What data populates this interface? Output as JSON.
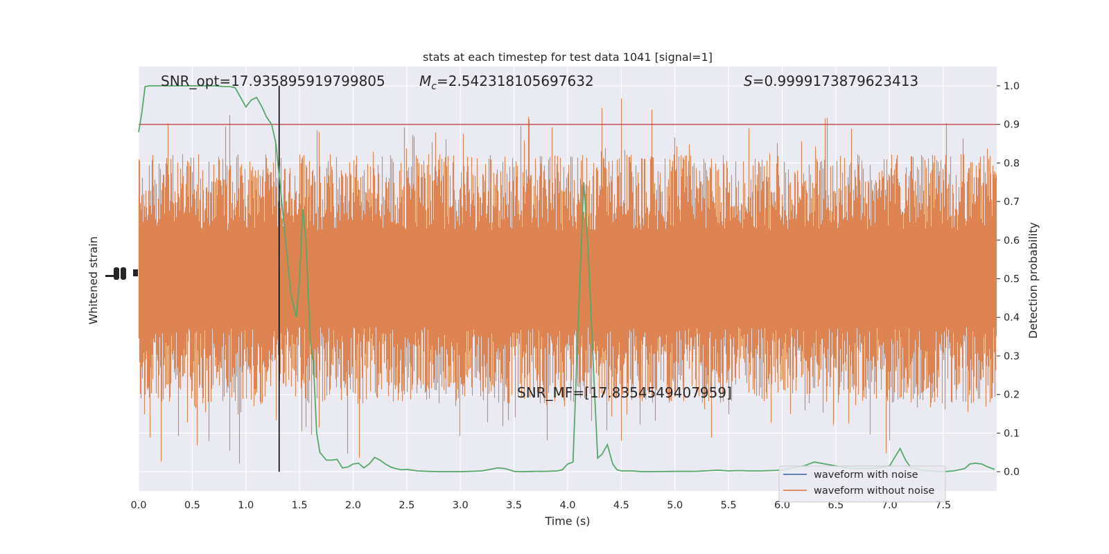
{
  "chart_data": {
    "type": "line",
    "title": "stats at each timestep for test data 1041 [signal=1]",
    "xlabel": "Time (s)",
    "ylabel_left": "Whitened strain",
    "ylabel_right": "Detection probability",
    "xlim": [
      0.0,
      8.0
    ],
    "ylim_right": [
      -0.05,
      1.05
    ],
    "x_ticks": [
      "0.0",
      "0.5",
      "1.0",
      "1.5",
      "2.0",
      "2.5",
      "3.0",
      "3.5",
      "4.0",
      "4.5",
      "5.0",
      "5.5",
      "6.0",
      "6.5",
      "7.0",
      "7.5"
    ],
    "right_ticks": [
      "0.0",
      "0.1",
      "0.2",
      "0.3",
      "0.4",
      "0.5",
      "0.6",
      "0.7",
      "0.8",
      "0.9",
      "1.0"
    ],
    "grid": true,
    "legend_position": "lower-right",
    "annotations": {
      "snr_opt": "SNR_opt=17.935895919799805",
      "mc_symbol": "M",
      "mc_sub": "c",
      "mc_value": "=2.542318105697632",
      "s_symbol": "S",
      "s_value": "=0.9999173879623413",
      "snr_mf": "SNR_MF=[17.8354549407959]"
    },
    "threshold": 0.9,
    "detection_time": 1.31,
    "series": [
      {
        "name": "waveform with noise",
        "color": "#4c72b0"
      },
      {
        "name": "waveform without noise",
        "color": "#dd8452"
      }
    ],
    "probability_color": "#55a868",
    "threshold_color": "#c44e52",
    "probability": {
      "x": [
        0.0,
        0.03,
        0.06,
        0.1,
        0.2,
        0.3,
        0.4,
        0.5,
        0.6,
        0.7,
        0.8,
        0.85,
        0.9,
        0.95,
        1.0,
        1.05,
        1.1,
        1.15,
        1.19,
        1.24,
        1.28,
        1.32,
        1.37,
        1.42,
        1.47,
        1.5,
        1.53,
        1.56,
        1.6,
        1.63,
        1.66,
        1.69,
        1.75,
        1.8,
        1.85,
        1.9,
        1.95,
        2.0,
        2.05,
        2.1,
        2.15,
        2.2,
        2.25,
        2.3,
        2.35,
        2.4,
        2.45,
        2.5,
        2.6,
        2.7,
        2.8,
        3.0,
        3.2,
        3.35,
        3.42,
        3.5,
        3.55,
        3.6,
        3.7,
        3.8,
        3.9,
        3.95,
        4.0,
        4.05,
        4.1,
        4.15,
        4.19,
        4.23,
        4.28,
        4.32,
        4.37,
        4.42,
        4.46,
        4.5,
        4.55,
        4.6,
        4.7,
        4.8,
        5.0,
        5.2,
        5.4,
        5.5,
        5.6,
        5.7,
        5.8,
        5.9,
        6.0,
        6.1,
        6.2,
        6.3,
        6.4,
        6.5,
        6.6,
        6.7,
        6.8,
        6.9,
        7.0,
        7.1,
        7.15,
        7.2,
        7.25,
        7.3,
        7.4,
        7.5,
        7.6,
        7.7,
        7.75,
        7.8,
        7.86,
        7.92,
        7.98
      ],
      "y": [
        0.88,
        0.93,
        0.998,
        1.0,
        1.0,
        1.0,
        1.0,
        1.0,
        1.0,
        1.0,
        0.998,
        0.998,
        0.995,
        0.97,
        0.945,
        0.963,
        0.97,
        0.945,
        0.92,
        0.9,
        0.85,
        0.74,
        0.6,
        0.46,
        0.4,
        0.5,
        0.68,
        0.6,
        0.34,
        0.28,
        0.1,
        0.05,
        0.03,
        0.03,
        0.032,
        0.01,
        0.012,
        0.02,
        0.022,
        0.01,
        0.02,
        0.037,
        0.03,
        0.02,
        0.012,
        0.008,
        0.005,
        0.006,
        0.002,
        0.001,
        0.0,
        0.0,
        0.002,
        0.01,
        0.008,
        0.001,
        0.0,
        0.0,
        0.001,
        0.001,
        0.002,
        0.005,
        0.02,
        0.025,
        0.4,
        0.75,
        0.58,
        0.33,
        0.035,
        0.045,
        0.07,
        0.02,
        0.005,
        0.002,
        0.002,
        0.002,
        0.0,
        0.0,
        0.001,
        0.001,
        0.004,
        0.002,
        0.003,
        0.002,
        0.002,
        0.003,
        0.004,
        0.01,
        0.015,
        0.025,
        0.02,
        0.015,
        0.01,
        0.008,
        0.008,
        0.01,
        0.015,
        0.06,
        0.03,
        0.01,
        0.008,
        0.004,
        0.002,
        0.0,
        0.002,
        0.008,
        0.02,
        0.022,
        0.02,
        0.012,
        0.006
      ]
    }
  }
}
